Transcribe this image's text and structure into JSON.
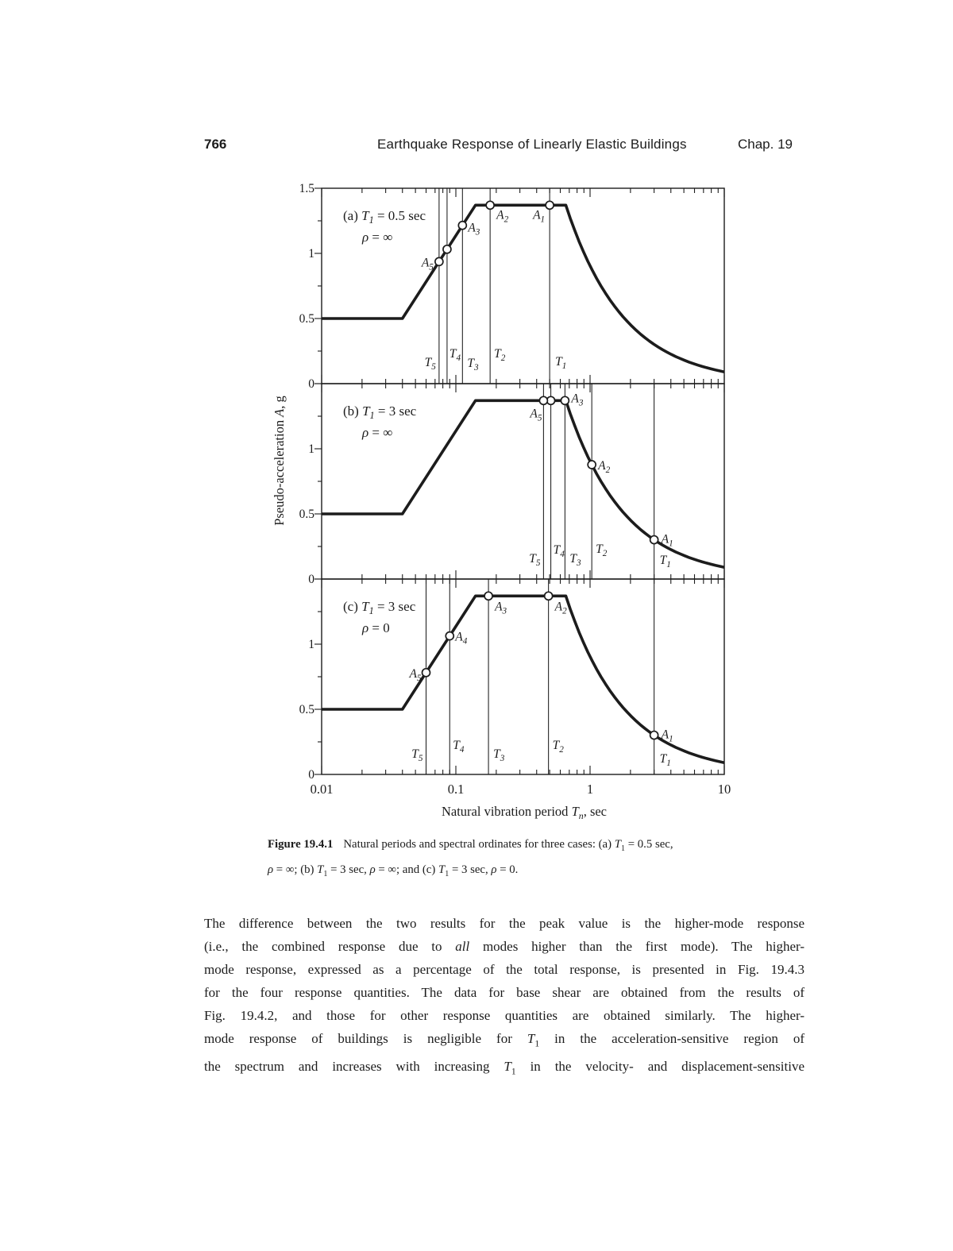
{
  "page": {
    "header": {
      "page_number": "766",
      "title": "Earthquake Response of Linearly Elastic Buildings",
      "chapter": "Chap. 19"
    },
    "caption": {
      "label": "Figure 19.4.1",
      "lines": [
        "Natural periods and spectral ordinates for three cases: (a) T1 = 0.5 sec,",
        "ρ = ∞; (b) T1 = 3 sec, ρ = ∞; and (c) T1 = 3 sec, ρ = 0."
      ]
    },
    "body_lines": [
      "The difference between the two results for the peak value is the higher-mode response",
      "(i.e., the combined response due to all modes higher than the first mode). The higher-",
      "mode response, expressed as a percentage of the total response, is presented in Fig. 19.4.3",
      "for the four response quantities. The data for base shear are obtained from the results of",
      "Fig. 19.4.2, and those for other response quantities are obtained similarly. The higher-",
      "mode response of buildings is negligible for T1 in the acceleration-sensitive region of",
      "the spectrum and increases with increasing T1 in the velocity- and displacement-sensitive"
    ]
  },
  "chart_data": {
    "type": "line",
    "title": "Natural periods and spectral ordinates for three cases",
    "xlabel": "Natural vibration period Tn, sec",
    "ylabel": "Pseudo-acceleration A, g",
    "x_scale": "log",
    "xlim": [
      0.01,
      10
    ],
    "x_tick_values": [
      0.01,
      0.1,
      1,
      10
    ],
    "x_tick_labels": [
      "0.01",
      "0.1",
      "1",
      "10"
    ],
    "ylim": [
      0,
      1.5
    ],
    "grid": false,
    "spectrum_shape": {
      "flat_low": {
        "T_range": [
          0.01,
          0.04
        ],
        "A": 0.5
      },
      "ramp_semilog": {
        "from": [
          0.04,
          0.5
        ],
        "to": [
          0.14,
          1.37
        ]
      },
      "flat_peak": {
        "T_range": [
          0.14,
          0.66
        ],
        "A": 1.37
      },
      "decay": {
        "rule": "A = 0.904 / T",
        "T_range": [
          0.66,
          10
        ],
        "A_end": 0.09
      }
    },
    "panels": [
      {
        "id": "a",
        "label_line1": "(a) T1 = 0.5 sec",
        "label_line2": "ρ = ∞",
        "y_tick_labels": [
          "1.5",
          "1",
          "0.5",
          "0"
        ],
        "y_tick_values": [
          1.5,
          1,
          0.5,
          0
        ],
        "periods": [
          {
            "name": "T1",
            "sec": 0.5
          },
          {
            "name": "T2",
            "sec": 0.18
          },
          {
            "name": "T3",
            "sec": 0.112
          },
          {
            "name": "T4",
            "sec": 0.086
          },
          {
            "name": "T5",
            "sec": 0.075
          }
        ],
        "markers": [
          {
            "name": "A1",
            "T": 0.5,
            "A": 1.37,
            "labeled": true
          },
          {
            "name": "A2",
            "T": 0.18,
            "A": 1.37,
            "labeled": true
          },
          {
            "name": "A3",
            "T": 0.112,
            "A": 1.22,
            "labeled": true
          },
          {
            "name": "A4",
            "T": 0.086,
            "A": 1.03,
            "labeled": false
          },
          {
            "name": "A5",
            "T": 0.075,
            "A": 0.94,
            "labeled": true
          }
        ]
      },
      {
        "id": "b",
        "label_line1": "(b) T1 = 3 sec",
        "label_line2": "ρ = ∞",
        "y_tick_labels": [
          "1",
          "0.5",
          "0"
        ],
        "y_tick_values": [
          1,
          0.5,
          0
        ],
        "periods": [
          {
            "name": "T1",
            "sec": 3
          },
          {
            "name": "T2",
            "sec": 1.03
          },
          {
            "name": "T3",
            "sec": 0.65
          },
          {
            "name": "T4",
            "sec": 0.51
          },
          {
            "name": "T5",
            "sec": 0.45
          }
        ],
        "markers": [
          {
            "name": "A1",
            "T": 3,
            "A": 0.3,
            "labeled": true
          },
          {
            "name": "A2",
            "T": 1.03,
            "A": 0.88,
            "labeled": true
          },
          {
            "name": "A3",
            "T": 0.65,
            "A": 1.37,
            "labeled": true
          },
          {
            "name": "A4",
            "T": 0.51,
            "A": 1.37,
            "labeled": false
          },
          {
            "name": "A5",
            "T": 0.45,
            "A": 1.37,
            "labeled": true
          }
        ]
      },
      {
        "id": "c",
        "label_line1": "(c) T1 = 3 sec",
        "label_line2": "ρ = 0",
        "y_tick_labels": [
          "1",
          "0.5",
          "0"
        ],
        "y_tick_values": [
          1,
          0.5,
          0
        ],
        "periods": [
          {
            "name": "T1",
            "sec": 3
          },
          {
            "name": "T2",
            "sec": 0.49
          },
          {
            "name": "T3",
            "sec": 0.175
          },
          {
            "name": "T4",
            "sec": 0.09
          },
          {
            "name": "T5",
            "sec": 0.06
          }
        ],
        "markers": [
          {
            "name": "A1",
            "T": 3,
            "A": 0.3,
            "labeled": true
          },
          {
            "name": "A2",
            "T": 0.49,
            "A": 1.37,
            "labeled": true
          },
          {
            "name": "A3",
            "T": 0.175,
            "A": 1.37,
            "labeled": true
          },
          {
            "name": "A4",
            "T": 0.09,
            "A": 1.06,
            "labeled": true
          },
          {
            "name": "A5",
            "T": 0.06,
            "A": 0.78,
            "labeled": true
          }
        ]
      }
    ]
  }
}
